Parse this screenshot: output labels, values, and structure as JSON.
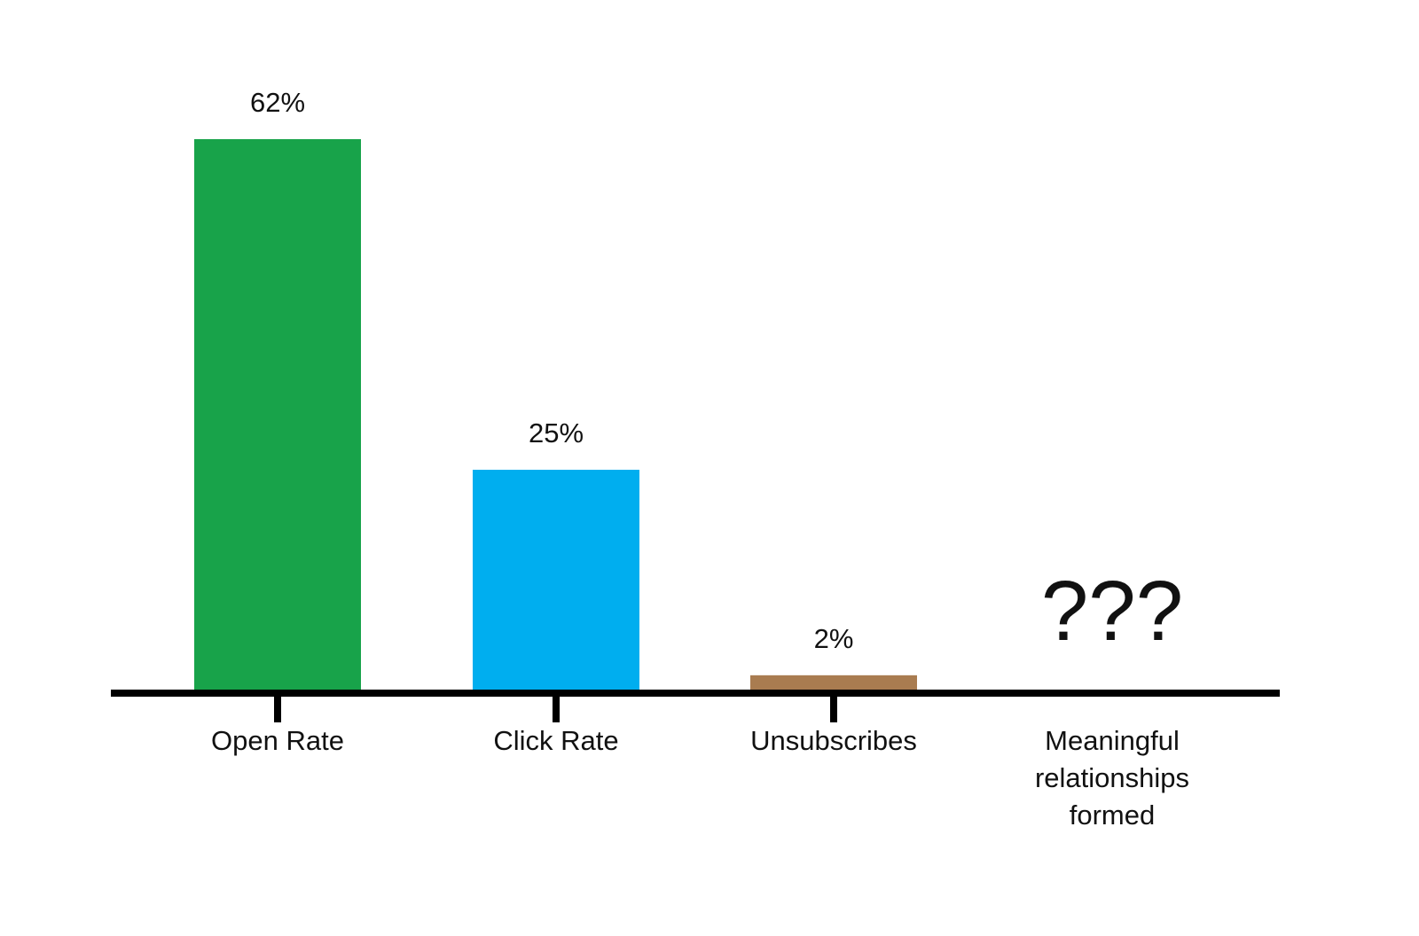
{
  "chart_data": {
    "type": "bar",
    "categories": [
      "Open Rate",
      "Click Rate",
      "Unsubscribes",
      "Meaningful relationships formed"
    ],
    "category_lines": [
      [
        "Open Rate"
      ],
      [
        "Click Rate"
      ],
      [
        "Unsubscribes"
      ],
      [
        "Meaningful",
        "relationships",
        "formed"
      ]
    ],
    "values": [
      62,
      25,
      2,
      null
    ],
    "data_labels": [
      "62%",
      "25%",
      "2%",
      "???"
    ],
    "colors": [
      "#18a34a",
      "#00aeef",
      "#a97c50",
      null
    ],
    "title": "",
    "xlabel": "",
    "ylabel": "",
    "ylim": [
      0,
      62
    ],
    "grid": false,
    "legend": "none"
  }
}
